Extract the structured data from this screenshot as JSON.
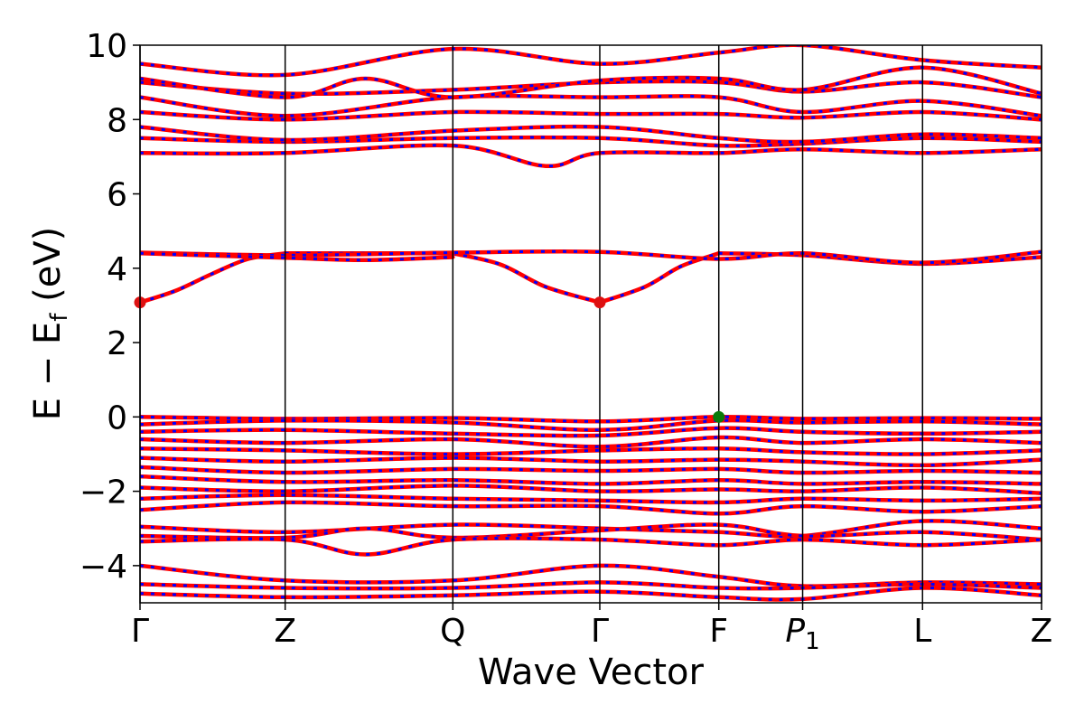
{
  "chart_data": {
    "type": "line",
    "title": "",
    "xlabel": "Wave Vector",
    "ylabel_parts": {
      "main": "E − E",
      "sub": "f",
      "unit": " (eV)"
    },
    "ylim": [
      -5,
      10
    ],
    "yticks": [
      -4,
      -2,
      0,
      2,
      4,
      6,
      8,
      10
    ],
    "ytick_labels": [
      "−4",
      "−2",
      "0",
      "2",
      "4",
      "6",
      "8",
      "10"
    ],
    "xlim": [
      0,
      1
    ],
    "kpoints": [
      {
        "label": "Γ",
        "x": 0.0
      },
      {
        "label": "Z",
        "x": 0.161
      },
      {
        "label": "Q",
        "x": 0.347
      },
      {
        "label": "Γ",
        "x": 0.51
      },
      {
        "label": "F",
        "x": 0.642
      },
      {
        "label": "P",
        "sub": "1",
        "italic": true,
        "x": 0.735
      },
      {
        "label": "L",
        "x": 0.868
      },
      {
        "label": "Z",
        "x": 1.0
      }
    ],
    "colors": {
      "bands": "#ff0000",
      "bands_dash": "#0000ff",
      "vbm": "#0a7a0a",
      "cbm": "#dd1111",
      "frame": "#000000"
    },
    "grid": false,
    "legend": "none",
    "markers": [
      {
        "kind": "cbm",
        "x": 0.0,
        "y": 3.08
      },
      {
        "kind": "cbm",
        "x": 0.51,
        "y": 3.08
      },
      {
        "kind": "vbm",
        "x": 0.642,
        "y": 0.0
      }
    ],
    "series": [
      {
        "x": [
          0,
          0.04,
          0.08,
          0.12,
          0.161
        ],
        "y": [
          3.08,
          3.4,
          3.85,
          4.25,
          4.4
        ]
      },
      {
        "x": [
          0.161,
          0.347
        ],
        "y": [
          4.4,
          4.4
        ]
      },
      {
        "x": [
          0.347,
          0.4,
          0.45,
          0.51
        ],
        "y": [
          4.4,
          4.1,
          3.5,
          3.08
        ]
      },
      {
        "x": [
          0.51,
          0.56,
          0.6,
          0.642
        ],
        "y": [
          3.08,
          3.5,
          4.05,
          4.4
        ]
      },
      {
        "x": [
          0.642,
          0.735,
          0.868,
          1.0
        ],
        "y": [
          4.4,
          4.35,
          4.12,
          4.3
        ]
      },
      {
        "x": [
          0,
          0.161,
          0.347,
          0.51,
          0.642,
          0.735,
          0.868,
          1.0
        ],
        "y": [
          4.42,
          4.35,
          4.42,
          4.44,
          4.25,
          4.4,
          4.15,
          4.44
        ]
      },
      {
        "x": [
          0,
          0.161,
          0.25,
          0.347
        ],
        "y": [
          4.4,
          4.28,
          4.22,
          4.3
        ]
      },
      {
        "x": [
          0,
          0.161,
          0.347,
          0.45,
          0.51,
          0.642,
          0.735,
          0.868,
          1.0
        ],
        "y": [
          7.1,
          7.1,
          7.3,
          6.75,
          7.1,
          7.1,
          7.2,
          7.1,
          7.2
        ]
      },
      {
        "x": [
          0,
          0.161,
          0.347,
          0.51,
          0.642,
          0.735,
          0.868,
          1.0
        ],
        "y": [
          7.5,
          7.4,
          7.5,
          7.5,
          7.3,
          7.35,
          7.5,
          7.4
        ]
      },
      {
        "x": [
          0,
          0.161,
          0.347,
          0.51,
          0.642,
          0.735,
          0.868,
          1.0
        ],
        "y": [
          7.8,
          7.45,
          7.7,
          7.8,
          7.5,
          7.4,
          7.6,
          7.5
        ]
      },
      {
        "x": [
          0,
          0.161,
          0.347,
          0.51,
          0.642,
          0.735,
          0.868,
          1.0
        ],
        "y": [
          8.2,
          8.0,
          8.2,
          8.15,
          8.15,
          8.05,
          8.2,
          8.0
        ]
      },
      {
        "x": [
          0,
          0.161,
          0.347,
          0.51,
          0.642,
          0.735,
          0.868,
          1.0
        ],
        "y": [
          8.6,
          8.1,
          8.6,
          8.6,
          8.6,
          8.2,
          8.5,
          8.1
        ]
      },
      {
        "x": [
          0,
          0.161,
          0.347,
          0.51,
          0.642,
          0.735,
          0.868,
          1.0
        ],
        "y": [
          9.0,
          8.7,
          8.8,
          9.0,
          9.0,
          8.75,
          9.0,
          8.6
        ]
      },
      {
        "x": [
          0,
          0.161,
          0.25,
          0.347,
          0.51,
          0.642,
          0.735,
          0.868,
          1.0
        ],
        "y": [
          9.1,
          8.6,
          9.1,
          8.6,
          9.05,
          9.1,
          8.8,
          9.4,
          8.7
        ]
      },
      {
        "x": [
          0,
          0.161,
          0.347,
          0.51,
          0.642,
          0.735,
          0.868,
          1.0
        ],
        "y": [
          9.5,
          9.2,
          9.9,
          9.5,
          9.8,
          10.0,
          9.6,
          9.4
        ]
      },
      {
        "x": [
          0,
          0.161,
          0.347,
          0.51,
          0.642,
          0.735,
          0.868,
          1.0
        ],
        "y": [
          0.0,
          -0.05,
          -0.03,
          -0.12,
          0.0,
          -0.05,
          -0.03,
          -0.05
        ]
      },
      {
        "x": [
          0,
          0.161,
          0.347,
          0.51,
          0.642,
          0.735,
          0.868,
          1.0
        ],
        "y": [
          -0.2,
          -0.1,
          -0.15,
          -0.35,
          -0.1,
          -0.15,
          -0.12,
          -0.2
        ]
      },
      {
        "x": [
          0,
          0.161,
          0.347,
          0.51,
          0.642,
          0.735,
          0.868,
          1.0
        ],
        "y": [
          -0.4,
          -0.35,
          -0.45,
          -0.5,
          -0.3,
          -0.4,
          -0.45,
          -0.4
        ]
      },
      {
        "x": [
          0,
          0.161,
          0.347,
          0.51,
          0.642,
          0.735,
          0.868,
          1.0
        ],
        "y": [
          -0.6,
          -0.7,
          -0.6,
          -0.8,
          -0.55,
          -0.7,
          -0.6,
          -0.7
        ]
      },
      {
        "x": [
          0,
          0.161,
          0.347,
          0.51,
          0.642,
          0.735,
          0.868,
          1.0
        ],
        "y": [
          -0.85,
          -0.9,
          -1.0,
          -0.9,
          -0.85,
          -0.95,
          -1.0,
          -0.9
        ]
      },
      {
        "x": [
          0,
          0.161,
          0.347,
          0.51,
          0.642,
          0.735,
          0.868,
          1.0
        ],
        "y": [
          -1.1,
          -1.2,
          -1.1,
          -1.2,
          -1.15,
          -1.2,
          -1.3,
          -1.15
        ]
      },
      {
        "x": [
          0,
          0.161,
          0.347,
          0.51,
          0.642,
          0.735,
          0.868,
          1.0
        ],
        "y": [
          -1.35,
          -1.5,
          -1.4,
          -1.45,
          -1.4,
          -1.5,
          -1.45,
          -1.5
        ]
      },
      {
        "x": [
          0,
          0.161,
          0.347,
          0.51,
          0.642,
          0.735,
          0.868,
          1.0
        ],
        "y": [
          -1.6,
          -1.75,
          -1.7,
          -1.8,
          -1.7,
          -1.8,
          -1.75,
          -1.8
        ]
      },
      {
        "x": [
          0,
          0.161,
          0.347,
          0.51,
          0.642,
          0.735,
          0.868,
          1.0
        ],
        "y": [
          -1.9,
          -2.0,
          -1.85,
          -2.0,
          -1.95,
          -2.0,
          -1.9,
          -2.05
        ]
      },
      {
        "x": [
          0,
          0.161,
          0.347,
          0.51,
          0.642,
          0.735,
          0.868,
          1.0
        ],
        "y": [
          -2.2,
          -2.1,
          -2.2,
          -2.25,
          -2.3,
          -2.2,
          -2.25,
          -2.2
        ]
      },
      {
        "x": [
          0,
          0.161,
          0.347,
          0.51,
          0.642,
          0.735,
          0.868,
          1.0
        ],
        "y": [
          -2.5,
          -2.3,
          -2.4,
          -2.4,
          -2.6,
          -2.4,
          -2.55,
          -2.4
        ]
      },
      {
        "x": [
          0,
          0.161,
          0.347,
          0.51,
          0.642,
          0.735,
          0.868,
          1.0
        ],
        "y": [
          -2.95,
          -3.1,
          -2.9,
          -3.0,
          -3.1,
          -3.2,
          -2.8,
          -3.0
        ]
      },
      {
        "x": [
          0,
          0.161,
          0.25,
          0.347,
          0.51,
          0.642,
          0.735,
          0.868,
          1.0
        ],
        "y": [
          -3.2,
          -3.25,
          -3.0,
          -3.25,
          -3.05,
          -2.9,
          -3.2,
          -3.1,
          -3.3
        ]
      },
      {
        "x": [
          0,
          0.161,
          0.25,
          0.347,
          0.51,
          0.642,
          0.735,
          0.868,
          1.0
        ],
        "y": [
          -3.35,
          -3.3,
          -3.7,
          -3.3,
          -3.3,
          -3.45,
          -3.3,
          -3.45,
          -3.3
        ]
      },
      {
        "x": [
          0,
          0.161,
          0.347,
          0.51,
          0.642,
          0.735,
          0.868,
          1.0
        ],
        "y": [
          -4.0,
          -4.4,
          -4.4,
          -4.0,
          -4.3,
          -4.55,
          -4.45,
          -4.5
        ]
      },
      {
        "x": [
          0,
          0.161,
          0.347,
          0.51,
          0.642,
          0.735,
          0.868,
          1.0
        ],
        "y": [
          -4.5,
          -4.6,
          -4.6,
          -4.45,
          -4.6,
          -4.6,
          -4.5,
          -4.6
        ]
      },
      {
        "x": [
          0,
          0.161,
          0.347,
          0.51,
          0.642,
          0.735,
          0.868,
          1.0
        ],
        "y": [
          -4.75,
          -4.85,
          -4.8,
          -4.7,
          -4.85,
          -4.9,
          -4.6,
          -4.8
        ]
      }
    ]
  }
}
